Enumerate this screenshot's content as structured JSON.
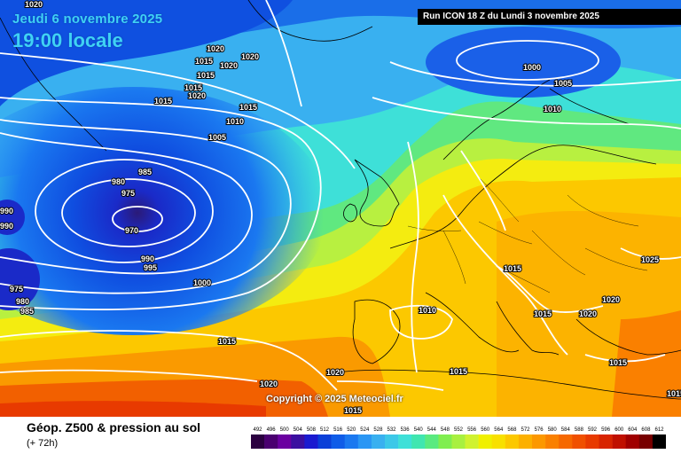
{
  "header": {
    "date": "Jeudi 6 novembre 2025",
    "time": "19:00 locale",
    "run": "Run ICON 18 Z du Lundi 3 novembre 2025"
  },
  "copyright": "Copyright © 2025 Meteociel.fr",
  "footer": {
    "field": "Géop. Z500 & pression au sol",
    "lead": "(+ 72h)"
  },
  "legend": {
    "values": [
      "492",
      "496",
      "500",
      "504",
      "508",
      "512",
      "516",
      "520",
      "524",
      "528",
      "532",
      "536",
      "540",
      "544",
      "548",
      "552",
      "556",
      "560",
      "564",
      "568",
      "572",
      "576",
      "580",
      "584",
      "588",
      "592",
      "596",
      "600",
      "604",
      "608",
      "612"
    ],
    "colors": [
      "#2b0040",
      "#4a0070",
      "#6a00a0",
      "#3b0fa0",
      "#1a1ad0",
      "#0a3fd8",
      "#0f5ce8",
      "#1a78f0",
      "#2a96f4",
      "#39b0f0",
      "#3cc8e8",
      "#3ee0d8",
      "#40e6b0",
      "#5aea80",
      "#80ee50",
      "#a8f040",
      "#d0f230",
      "#f0f000",
      "#f8e000",
      "#fcc800",
      "#fcb000",
      "#fc9800",
      "#fa8000",
      "#f66800",
      "#f05000",
      "#e83a00",
      "#d82400",
      "#c01000",
      "#a00000",
      "#780000",
      "#000000"
    ]
  },
  "isobars": [
    {
      "label": "1020",
      "kind": "high"
    },
    {
      "label": "1015",
      "kind": "mid"
    },
    {
      "label": "1010",
      "kind": "mid"
    },
    {
      "label": "1005",
      "kind": "mid"
    },
    {
      "label": "1000",
      "kind": "low"
    },
    {
      "label": "995",
      "kind": "low"
    },
    {
      "label": "990",
      "kind": "low"
    },
    {
      "label": "985",
      "kind": "low"
    },
    {
      "label": "980",
      "kind": "low"
    },
    {
      "label": "975",
      "kind": "low"
    },
    {
      "label": "970",
      "kind": "low"
    },
    {
      "label": "1025",
      "kind": "high"
    }
  ]
}
